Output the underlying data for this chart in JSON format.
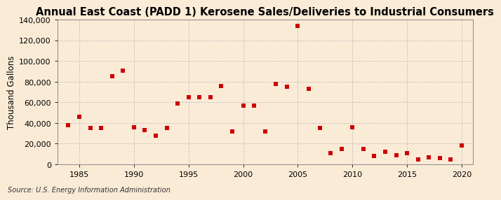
{
  "title": "Annual East Coast (PADD 1) Kerosene Sales/Deliveries to Industrial Consumers",
  "ylabel": "Thousand Gallons",
  "source": "Source: U.S. Energy Information Administration",
  "background_color": "#faebd7",
  "plot_bg_color": "#faebd7",
  "marker_color": "#cc0000",
  "years": [
    1984,
    1985,
    1986,
    1987,
    1988,
    1989,
    1990,
    1991,
    1992,
    1993,
    1994,
    1995,
    1996,
    1997,
    1998,
    1999,
    2000,
    2001,
    2002,
    2003,
    2004,
    2005,
    2006,
    2007,
    2008,
    2009,
    2010,
    2011,
    2012,
    2013,
    2014,
    2015,
    2016,
    2017,
    2018,
    2019,
    2020
  ],
  "values": [
    38000,
    46000,
    35000,
    35000,
    85000,
    91000,
    36000,
    33000,
    28000,
    35000,
    59000,
    65000,
    65000,
    65000,
    76000,
    32000,
    57000,
    57000,
    32000,
    78000,
    75000,
    134000,
    73000,
    35000,
    11000,
    15000,
    36000,
    15000,
    8000,
    12000,
    9000,
    11000,
    5000,
    7000,
    6000,
    5000,
    18000
  ],
  "ylim": [
    0,
    140000
  ],
  "xlim": [
    1983,
    2021
  ],
  "yticks": [
    0,
    20000,
    40000,
    60000,
    80000,
    100000,
    120000,
    140000
  ],
  "xticks": [
    1985,
    1990,
    1995,
    2000,
    2005,
    2010,
    2015,
    2020
  ],
  "grid_color": "#b0b0b0",
  "title_fontsize": 10.5,
  "label_fontsize": 8.5,
  "tick_fontsize": 8,
  "source_fontsize": 7
}
